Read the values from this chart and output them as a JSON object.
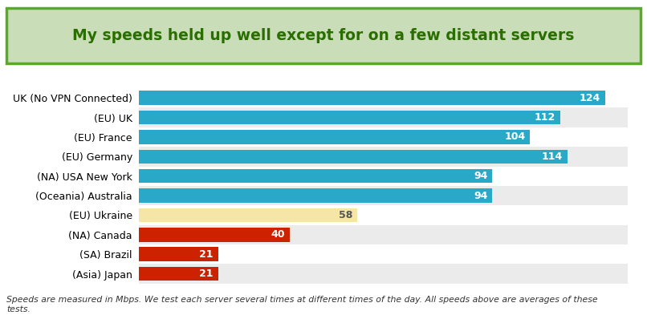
{
  "title": "My speeds held up well except for on a few distant servers",
  "categories": [
    "UK (No VPN Connected)",
    "(EU) UK",
    "(EU) France",
    "(EU) Germany",
    "(NA) USA New York",
    "(Oceania) Australia",
    "(EU) Ukraine",
    "(NA) Canada",
    "(SA) Brazil",
    "(Asia) Japan"
  ],
  "values": [
    124,
    112,
    104,
    114,
    94,
    94,
    58,
    40,
    21,
    21
  ],
  "bar_colors": [
    "#29a8c8",
    "#29a8c8",
    "#29a8c8",
    "#29a8c8",
    "#29a8c8",
    "#29a8c8",
    "#f5e6a8",
    "#cc2200",
    "#cc2200",
    "#cc2200"
  ],
  "label_colors": [
    "#ffffff",
    "#ffffff",
    "#ffffff",
    "#ffffff",
    "#ffffff",
    "#ffffff",
    "#555555",
    "#ffffff",
    "#ffffff",
    "#ffffff"
  ],
  "footnote": "Speeds are measured in Mbps. We test each server several times at different times of the day. All speeds above are averages of these\ntests.",
  "title_bg_color": "#c8ddb8",
  "title_border_color": "#5aaa28",
  "title_text_color": "#2a6e00",
  "row_bg_colors": [
    "#ffffff",
    "#ebebeb"
  ],
  "bar_height": 0.72,
  "xlim": [
    0,
    130
  ]
}
